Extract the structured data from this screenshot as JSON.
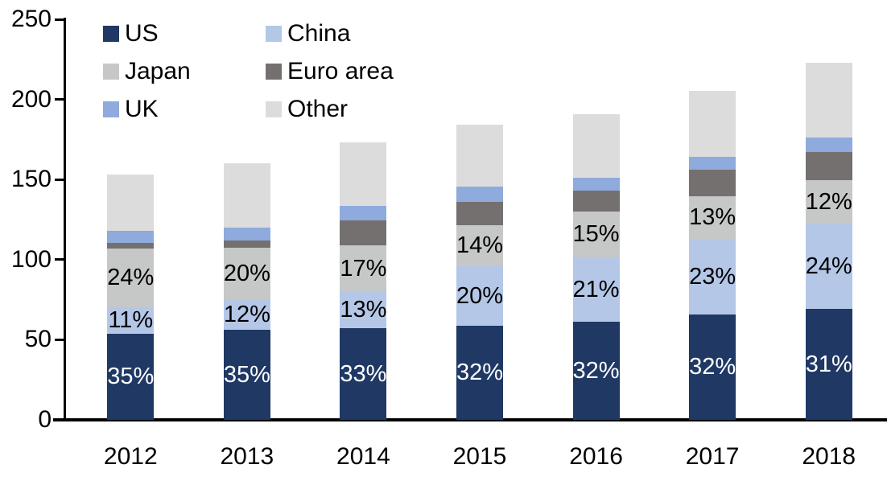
{
  "chart_data": {
    "type": "bar",
    "subtype": "stacked-vertical",
    "title": "",
    "xlabel": "",
    "ylabel": "",
    "categories": [
      "2012",
      "2013",
      "2014",
      "2015",
      "2016",
      "2017",
      "2018"
    ],
    "stack_order_bottom_to_top": [
      "US",
      "China",
      "Japan",
      "Euro area",
      "UK",
      "Other"
    ],
    "series": [
      {
        "name": "US",
        "color": "#1F3864",
        "label_color": "#FFFFFF",
        "values": [
          53.6,
          56.0,
          57.1,
          58.9,
          61.1,
          65.6,
          69.1
        ],
        "labels": [
          "35%",
          "35%",
          "33%",
          "32%",
          "32%",
          "32%",
          "31%"
        ]
      },
      {
        "name": "China",
        "color": "#B4C7E7",
        "label_color": "#000000",
        "values": [
          16.8,
          19.2,
          22.5,
          36.8,
          40.1,
          47.2,
          53.5
        ],
        "labels": [
          "11%",
          "12%",
          "13%",
          "20%",
          "21%",
          "23%",
          "24%"
        ]
      },
      {
        "name": "Japan",
        "color": "#C6C8C7",
        "label_color": "#000000",
        "values": [
          36.7,
          32.0,
          29.4,
          25.8,
          28.7,
          26.7,
          26.8
        ],
        "labels": [
          "24%",
          "20%",
          "17%",
          "14%",
          "15%",
          "13%",
          "12%"
        ]
      },
      {
        "name": "Euro area",
        "color": "#757070",
        "label_color": "#000000",
        "values": [
          3.1,
          4.8,
          15.6,
          14.7,
          13.4,
          16.4,
          17.8
        ],
        "labels": null
      },
      {
        "name": "UK",
        "color": "#8FAADC",
        "label_color": "#000000",
        "values": [
          7.7,
          8.0,
          8.7,
          9.2,
          7.6,
          8.2,
          8.9
        ],
        "labels": null
      },
      {
        "name": "Other",
        "color": "#DCDCDC",
        "label_color": "#000000",
        "values": [
          35.2,
          40.0,
          39.8,
          38.6,
          40.1,
          41.0,
          46.9
        ],
        "labels": null
      }
    ],
    "approx_totals": [
      153,
      160,
      173,
      184,
      191,
      205,
      223
    ],
    "y_axis": {
      "min": 0,
      "max": 250,
      "step": 50,
      "tick_labels": [
        "0",
        "50",
        "100",
        "150",
        "200",
        "250"
      ]
    },
    "legend": {
      "position": "top-left-inside",
      "columns": 2,
      "order": [
        "US",
        "China",
        "Japan",
        "Euro area",
        "UK",
        "Other"
      ]
    },
    "grid": "off",
    "axis_color": "#000000",
    "text_color": "#000000",
    "background_color": "#FFFFFF"
  }
}
